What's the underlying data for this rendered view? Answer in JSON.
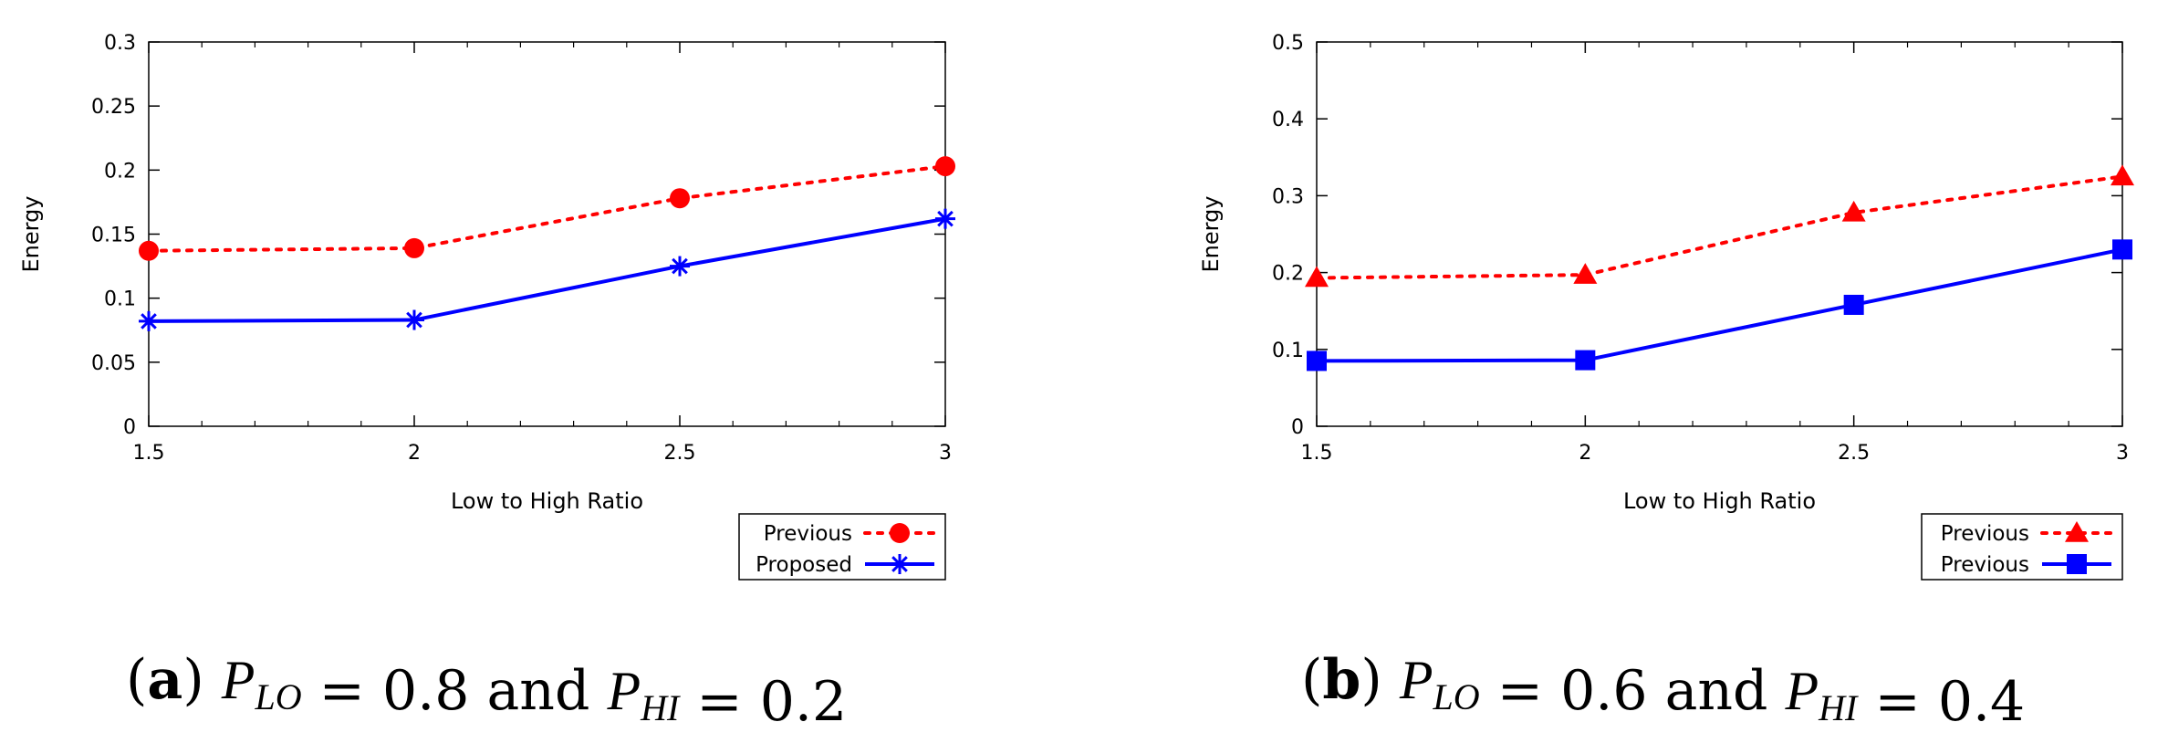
{
  "chart_data": [
    {
      "type": "line",
      "panel": "a",
      "xlabel": "Low to High Ratio",
      "ylabel": "Energy",
      "x": [
        1.5,
        2,
        2.5,
        3
      ],
      "xlim": [
        1.5,
        3
      ],
      "ylim": [
        0,
        0.3
      ],
      "xticks": [
        "1.5",
        "2",
        "2.5",
        "3"
      ],
      "yticks": [
        "0",
        "0.05",
        "0.1",
        "0.15",
        "0.2",
        "0.25",
        "0.3"
      ],
      "ytick_values": [
        0,
        0.05,
        0.1,
        0.15,
        0.2,
        0.25,
        0.3
      ],
      "legend_position": "bottom-right outside",
      "series": [
        {
          "name": "Previous",
          "values": [
            0.137,
            0.139,
            0.178,
            0.203
          ],
          "color": "#ff0000",
          "style": "dotted",
          "marker": "circle"
        },
        {
          "name": "Proposed",
          "values": [
            0.082,
            0.083,
            0.125,
            0.162
          ],
          "color": "#0000ff",
          "style": "solid",
          "marker": "star"
        }
      ],
      "caption": {
        "label": "a",
        "text": "P_LO = 0.8 and P_HI = 0.2",
        "plo": "0.8",
        "phi": "0.2"
      }
    },
    {
      "type": "line",
      "panel": "b",
      "xlabel": "Low to High Ratio",
      "ylabel": "Energy",
      "x": [
        1.5,
        2,
        2.5,
        3
      ],
      "xlim": [
        1.5,
        3
      ],
      "ylim": [
        0,
        0.5
      ],
      "xticks": [
        "1.5",
        "2",
        "2.5",
        "3"
      ],
      "yticks": [
        "0",
        "0.1",
        "0.2",
        "0.3",
        "0.4",
        "0.5"
      ],
      "ytick_values": [
        0,
        0.1,
        0.2,
        0.3,
        0.4,
        0.5
      ],
      "legend_position": "bottom-right outside",
      "series": [
        {
          "name": "Previous",
          "values": [
            0.193,
            0.197,
            0.278,
            0.325
          ],
          "color": "#ff0000",
          "style": "dotted",
          "marker": "triangle"
        },
        {
          "name": "Previous",
          "values": [
            0.085,
            0.086,
            0.158,
            0.23
          ],
          "color": "#0000ff",
          "style": "solid",
          "marker": "square"
        }
      ],
      "caption": {
        "label": "b",
        "text": "P_LO = 0.6 and P_HI = 0.4",
        "plo": "0.6",
        "phi": "0.4"
      }
    }
  ],
  "captions": {
    "and_word": "and",
    "equals": "=",
    "p": "P",
    "lo_sub": "LO",
    "hi_sub": "HI"
  }
}
